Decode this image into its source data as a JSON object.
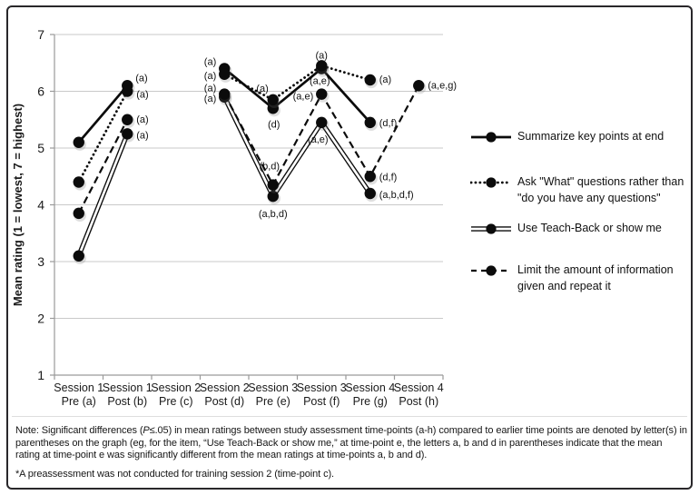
{
  "colors": {
    "line": "#0b0b0b",
    "grid": "#c9c9c9",
    "axis": "#9a9a9a",
    "text": "#1a1a1a",
    "border": "#29272a",
    "background": "#ffffff"
  },
  "chart_data": {
    "type": "line",
    "title": "",
    "xlabel": "",
    "ylabel": "Mean rating (1 = lowest, 7 = highest)",
    "ylim": [
      1,
      7
    ],
    "y_ticks": [
      7,
      6,
      5,
      4,
      3,
      2,
      1
    ],
    "grid": true,
    "legend_position": "right",
    "categories": [
      "Session 1 Pre (a)",
      "Session 1 Post (b)",
      "Session 2 Pre (c)",
      "Session 2 Post (d)",
      "Session 3 Pre (e)",
      "Session 3 Post (f)",
      "Session 4 Pre (g)",
      "Session 4 Post (h)"
    ],
    "category_tick_lines": [
      [
        "Session 1",
        "Pre (a)"
      ],
      [
        "Session 1",
        "Post (b)"
      ],
      [
        "Session 2",
        "Pre (c)"
      ],
      [
        "Session 2",
        "Post (d)"
      ],
      [
        "Session 3",
        "Pre (e)"
      ],
      [
        "Session 3",
        "Post (f)"
      ],
      [
        "Session 4",
        "Pre (g)"
      ],
      [
        "Session 4",
        "Post (h)"
      ]
    ],
    "series": [
      {
        "name": "Summarize key points at end",
        "style": "solid",
        "values": [
          5.1,
          6.1,
          null,
          6.4,
          5.7,
          6.4,
          5.45,
          null
        ],
        "labels": [
          null,
          {
            "text": "(a)",
            "dx": 9,
            "dy": -9,
            "anchor": "start"
          },
          null,
          {
            "text": "(a)",
            "dx": -9,
            "dy": -8,
            "anchor": "end"
          },
          {
            "text": "(d)",
            "dx": 1,
            "dy": 17,
            "anchor": "middle"
          },
          {
            "text": "(a,e)",
            "dx": -2,
            "dy": 13,
            "anchor": "middle"
          },
          {
            "text": "(d,f)",
            "dx": 10,
            "dy": 0,
            "anchor": "start"
          },
          null
        ]
      },
      {
        "name": "Ask \"What\" questions rather than \"do you have any questions\"",
        "style": "dotted",
        "values": [
          4.4,
          6.0,
          null,
          6.3,
          5.85,
          6.45,
          6.2,
          null
        ],
        "labels": [
          null,
          {
            "text": "(a)",
            "dx": 10,
            "dy": 3,
            "anchor": "start"
          },
          null,
          {
            "text": "(a)",
            "dx": -9,
            "dy": 1,
            "anchor": "end"
          },
          {
            "text": "(a)",
            "dx": -5,
            "dy": -13,
            "anchor": "end"
          },
          {
            "text": "(a)",
            "dx": 0,
            "dy": -12,
            "anchor": "middle"
          },
          {
            "text": "(a)",
            "dx": 10,
            "dy": -1,
            "anchor": "start"
          },
          null
        ]
      },
      {
        "name": "Use Teach-Back or show me",
        "style": "double",
        "values": [
          3.1,
          5.25,
          null,
          5.9,
          4.15,
          5.45,
          4.2,
          null
        ],
        "labels": [
          null,
          {
            "text": "(a)",
            "dx": 10,
            "dy": 1,
            "anchor": "start"
          },
          null,
          {
            "text": "(a)",
            "dx": -9,
            "dy": 1,
            "anchor": "end"
          },
          {
            "text": "(a,b,d)",
            "dx": 0,
            "dy": 19,
            "anchor": "middle"
          },
          {
            "text": "(a,e)",
            "dx": -4,
            "dy": 18,
            "anchor": "middle"
          },
          {
            "text": "(a,b,d,f)",
            "dx": 10,
            "dy": 1,
            "anchor": "start"
          },
          null
        ]
      },
      {
        "name": "Limit the amount of information given and repeat it",
        "style": "dashed",
        "values": [
          3.85,
          5.5,
          null,
          5.95,
          4.35,
          5.95,
          4.5,
          6.1
        ],
        "labels": [
          null,
          {
            "text": "(a)",
            "dx": 10,
            "dy": -1,
            "anchor": "start"
          },
          null,
          {
            "text": "(a)",
            "dx": -9,
            "dy": -7,
            "anchor": "end"
          },
          {
            "text": "(b,d)",
            "dx": -4,
            "dy": -21,
            "anchor": "middle"
          },
          {
            "text": "(a,e)",
            "dx": -9,
            "dy": 2,
            "anchor": "end"
          },
          {
            "text": "(d,f)",
            "dx": 10,
            "dy": 0,
            "anchor": "start"
          },
          {
            "text": "(a,e,g)",
            "dx": 10,
            "dy": -1,
            "anchor": "start"
          }
        ]
      }
    ]
  },
  "legend": {
    "items": [
      {
        "style": "solid",
        "lines": [
          "Summarize key points at end"
        ]
      },
      {
        "style": "dotted",
        "lines": [
          "Ask \"What\" questions rather than",
          "\"do you have any questions\""
        ]
      },
      {
        "style": "double",
        "lines": [
          "Use Teach-Back or show me"
        ]
      },
      {
        "style": "dashed",
        "lines": [
          "Limit the amount of information",
          "given and repeat it"
        ]
      }
    ]
  },
  "note": {
    "part1": "Note: Significant differences (",
    "italic_p": "P",
    "part2": "≤.05) in mean ratings between study assessment time-points (a-h) compared to earlier time points are denoted by letter(s) in parentheses on the graph (eg, for the item, “Use Teach-Back or show me,” at time-point e, the letters a, b and d in parentheses indicate that the mean rating at time-point e was significantly different from the mean ratings at time-points a, b and d).",
    "footnote": "*A preassessment was not conducted for training session 2 (time-point c)."
  }
}
